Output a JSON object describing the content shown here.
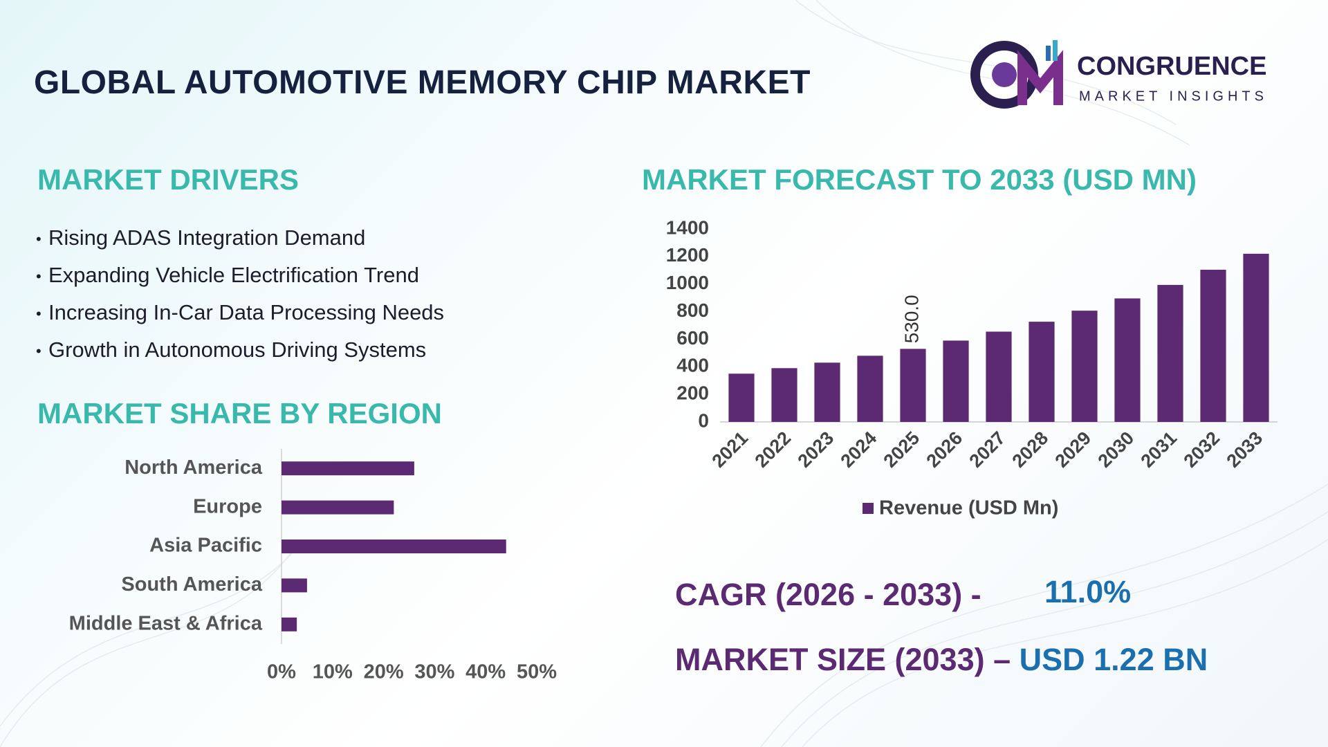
{
  "header": {
    "title": "GLOBAL AUTOMOTIVE MEMORY CHIP MARKET",
    "brand": "CONGRUENCE",
    "brand_sub": "MARKET INSIGHTS"
  },
  "drivers": {
    "title": "MARKET DRIVERS",
    "items": [
      "Rising ADAS Integration Demand",
      "Expanding Vehicle Electrification Trend",
      "Increasing In-Car Data Processing Needs",
      "Growth in Autonomous Driving Systems"
    ]
  },
  "chart_data": [
    {
      "type": "bar",
      "title": "MARKET FORECAST TO 2033 (USD MN)",
      "categories": [
        "2021",
        "2022",
        "2023",
        "2024",
        "2025",
        "2026",
        "2027",
        "2028",
        "2029",
        "2030",
        "2031",
        "2032",
        "2033"
      ],
      "series": [
        {
          "name": "Revenue (USD Mn)",
          "color": "#5b2a72",
          "values": [
            350,
            390,
            430,
            480,
            530,
            590,
            655,
            727,
            807,
            896,
            994,
            1104,
            1220
          ],
          "value_labels": [
            null,
            null,
            null,
            null,
            "530.0",
            null,
            null,
            null,
            null,
            null,
            null,
            null,
            null
          ]
        }
      ],
      "ylim": [
        0,
        1400
      ],
      "yticks": [
        0,
        200,
        400,
        600,
        800,
        1000,
        1200,
        1400
      ],
      "legend": "bottom"
    },
    {
      "type": "bar",
      "orientation": "horizontal",
      "title": "MARKET SHARE BY REGION",
      "categories": [
        "North America",
        "Europe",
        "Asia Pacific",
        "South America",
        "Middle East & Africa"
      ],
      "values": [
        26,
        22,
        44,
        5,
        3
      ],
      "color": "#5b2a72",
      "xlim": [
        0,
        50
      ],
      "xticks": [
        {
          "value": 0,
          "label": "0%"
        },
        {
          "value": 10,
          "label": "10%"
        },
        {
          "value": 20,
          "label": "20%"
        },
        {
          "value": 30,
          "label": "30%"
        },
        {
          "value": 40,
          "label": "40%"
        },
        {
          "value": 50,
          "label": "50%"
        }
      ]
    }
  ],
  "summary": {
    "cagr_label": "CAGR (2026 - 2033) -",
    "cagr_value": "11.0%",
    "size_label": "MARKET SIZE (2033) –",
    "size_value": "USD 1.22 BN"
  }
}
